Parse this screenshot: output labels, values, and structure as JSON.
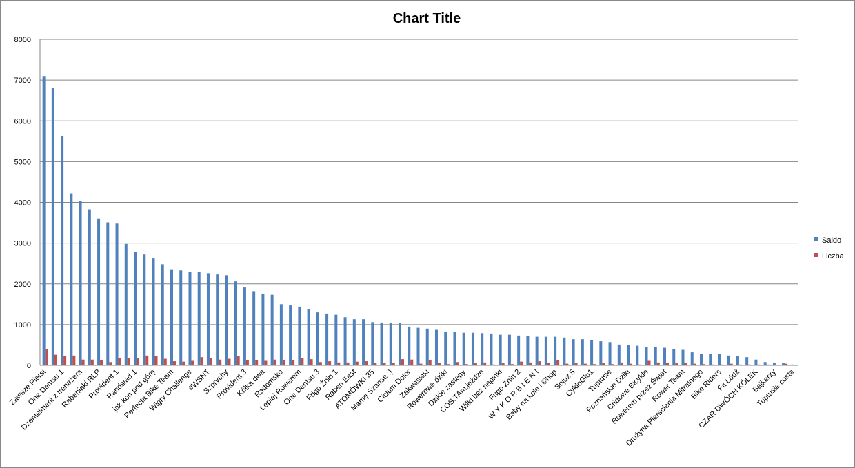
{
  "chart_data": {
    "type": "bar",
    "title": "Chart Title",
    "categories": [
      "Zawsze Piersi",
      null,
      "One Dentsu 1",
      null,
      "Dżentelmeni z trenażera",
      null,
      "Rabeniaki RLP",
      null,
      "Provident 1",
      null,
      "Randstad 1",
      null,
      "jak koń pod górę",
      null,
      "Perfecta Bike Team",
      null,
      "Wigry Challenge",
      null,
      "#WSNT",
      null,
      "Szprychy",
      null,
      "Provident 3",
      null,
      "Kółka dwa",
      null,
      "Radomsko",
      null,
      "Lepiej Rowerem",
      null,
      "One Dentsu 3",
      null,
      "Frigo Żnin 1",
      null,
      "Raben East",
      null,
      "ATOMÓWKI 35",
      null,
      "Mamę Szanse :)",
      null,
      "Ciclum Dolor",
      null,
      "Zakwasiaki",
      null,
      "Rowerowe dziki",
      null,
      "Dzikie zastępy",
      null,
      "COS.TAm.jeżdże",
      null,
      "Wilki bez napinki",
      null,
      "Frigo Żnin 2",
      null,
      "W Y K O R B I E N I",
      null,
      "Baby na kole i ©hop",
      null,
      "Sojuz 5",
      null,
      "CykloGlo1",
      null,
      "Tuptusie",
      null,
      "Poznańskie Dziki",
      null,
      "Cridowe Bicykle",
      null,
      "Rowerem przez Świat",
      null,
      "Rower Team",
      null,
      "Drużyna Pierścienia Mitralnego",
      null,
      "Bike Riders",
      null,
      "Fit Łódź",
      null,
      "CZAR DWÓCH KÓŁEK",
      null,
      "Bajkerzy",
      null,
      "Tuptusie costa"
    ],
    "series": [
      {
        "name": "Saldo",
        "color": "#4f81bd",
        "values": [
          7100,
          6800,
          5630,
          4220,
          4040,
          3830,
          3590,
          3510,
          3480,
          2980,
          2790,
          2720,
          2620,
          2480,
          2340,
          2330,
          2300,
          2300,
          2260,
          2230,
          2210,
          2060,
          1910,
          1820,
          1760,
          1730,
          1500,
          1470,
          1440,
          1380,
          1300,
          1270,
          1240,
          1180,
          1130,
          1130,
          1060,
          1050,
          1040,
          1040,
          950,
          920,
          900,
          870,
          830,
          820,
          800,
          800,
          790,
          780,
          750,
          750,
          730,
          720,
          700,
          700,
          700,
          680,
          640,
          640,
          610,
          590,
          570,
          510,
          490,
          480,
          450,
          440,
          430,
          400,
          380,
          320,
          280,
          280,
          270,
          240,
          220,
          200,
          140,
          80,
          60,
          50,
          20
        ]
      },
      {
        "name": "Liczba",
        "color": "#c0504d",
        "values": [
          390,
          260,
          220,
          240,
          140,
          140,
          130,
          80,
          170,
          170,
          170,
          240,
          220,
          160,
          100,
          90,
          110,
          200,
          170,
          140,
          160,
          220,
          130,
          120,
          110,
          140,
          120,
          120,
          170,
          150,
          80,
          100,
          70,
          70,
          90,
          100,
          60,
          60,
          60,
          150,
          140,
          40,
          130,
          60,
          30,
          80,
          30,
          50,
          70,
          20,
          50,
          30,
          90,
          70,
          100,
          60,
          120,
          40,
          50,
          40,
          30,
          60,
          30,
          70,
          40,
          20,
          110,
          70,
          60,
          50,
          60,
          40,
          30,
          20,
          20,
          40,
          20,
          20,
          20,
          20,
          10,
          40,
          10
        ]
      }
    ],
    "ylim": [
      0,
      8000
    ],
    "yticks": [
      0,
      1000,
      2000,
      3000,
      4000,
      5000,
      6000,
      7000,
      8000
    ],
    "grid": true,
    "legend": "right"
  }
}
